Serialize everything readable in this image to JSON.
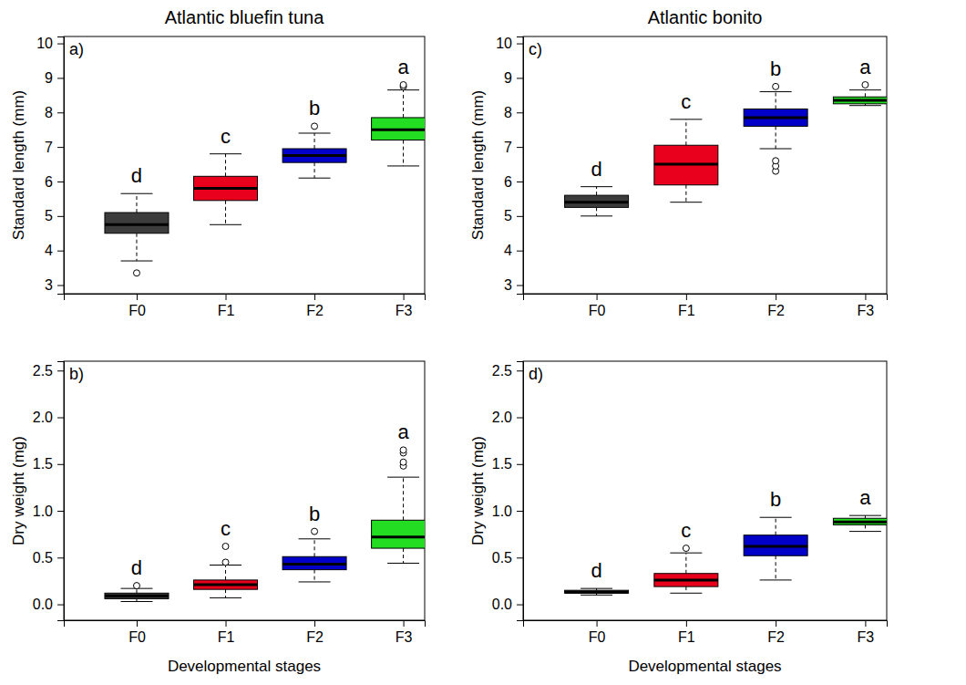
{
  "chart_data": [
    {
      "type": "box",
      "title": "Atlantic bluefin tuna",
      "panel_label": "a)",
      "ylabel": "Standard length (mm)",
      "categories": [
        "F0",
        "F1",
        "F2",
        "F3"
      ],
      "colors": [
        "#3c3c3c",
        "#e8001c",
        "#0000c8",
        "#22dd22"
      ],
      "ylim": [
        2.75,
        10.2
      ],
      "yticks": [
        3,
        4,
        5,
        6,
        7,
        8,
        9,
        10
      ],
      "boxes": [
        {
          "whisker_low": 3.7,
          "q1": 4.5,
          "median": 4.75,
          "q3": 5.1,
          "whisker_high": 5.65,
          "outliers": [
            3.35
          ]
        },
        {
          "whisker_low": 4.75,
          "q1": 5.45,
          "median": 5.8,
          "q3": 6.15,
          "whisker_high": 6.8,
          "outliers": []
        },
        {
          "whisker_low": 6.1,
          "q1": 6.55,
          "median": 6.75,
          "q3": 6.95,
          "whisker_high": 7.4,
          "outliers": [
            7.6
          ]
        },
        {
          "whisker_low": 6.45,
          "q1": 7.2,
          "median": 7.5,
          "q3": 7.85,
          "whisker_high": 8.65,
          "outliers": [
            8.75,
            8.8
          ]
        }
      ],
      "letters": [
        "d",
        "c",
        "b",
        "a"
      ]
    },
    {
      "type": "box",
      "panel_label": "b)",
      "ylabel": "Dry weight (mg)",
      "xlabel": "Developmental stages",
      "categories": [
        "F0",
        "F1",
        "F2",
        "F3"
      ],
      "colors": [
        "#3c3c3c",
        "#e8001c",
        "#0000c8",
        "#22dd22"
      ],
      "ylim": [
        -0.17,
        2.6
      ],
      "yticks": [
        {
          "value": 0,
          "label": "0.0"
        },
        {
          "value": 0.5,
          "label": "0.5"
        },
        {
          "value": 1,
          "label": "1.0"
        },
        {
          "value": 1.5,
          "label": "1.5"
        },
        {
          "value": 2,
          "label": "2.0"
        },
        {
          "value": 2.5,
          "label": "2.5"
        }
      ],
      "boxes": [
        {
          "whisker_low": 0.03,
          "q1": 0.06,
          "median": 0.09,
          "q3": 0.12,
          "whisker_high": 0.17,
          "outliers": [
            0.2
          ]
        },
        {
          "whisker_low": 0.07,
          "q1": 0.16,
          "median": 0.21,
          "q3": 0.26,
          "whisker_high": 0.42,
          "outliers": [
            0.45,
            0.62
          ]
        },
        {
          "whisker_low": 0.24,
          "q1": 0.37,
          "median": 0.43,
          "q3": 0.51,
          "whisker_high": 0.7,
          "outliers": [
            0.78
          ]
        },
        {
          "whisker_low": 0.44,
          "q1": 0.6,
          "median": 0.72,
          "q3": 0.9,
          "whisker_high": 1.36,
          "outliers": [
            1.48,
            1.52,
            1.62,
            1.65
          ]
        }
      ],
      "letters": [
        "d",
        "c",
        "b",
        "a"
      ]
    },
    {
      "type": "box",
      "title": "Atlantic bonito",
      "panel_label": "c)",
      "ylabel": "Standard length (mm)",
      "categories": [
        "F0",
        "F1",
        "F2",
        "F3"
      ],
      "colors": [
        "#3c3c3c",
        "#e8001c",
        "#0000c8",
        "#22dd22"
      ],
      "ylim": [
        2.75,
        10.2
      ],
      "yticks": [
        3,
        4,
        5,
        6,
        7,
        8,
        9,
        10
      ],
      "boxes": [
        {
          "whisker_low": 5.0,
          "q1": 5.25,
          "median": 5.4,
          "q3": 5.6,
          "whisker_high": 5.85,
          "outliers": []
        },
        {
          "whisker_low": 5.4,
          "q1": 5.9,
          "median": 6.5,
          "q3": 7.05,
          "whisker_high": 7.8,
          "outliers": []
        },
        {
          "whisker_low": 6.95,
          "q1": 7.6,
          "median": 7.85,
          "q3": 8.1,
          "whisker_high": 8.6,
          "outliers": [
            6.3,
            6.45,
            6.6,
            8.75
          ]
        },
        {
          "whisker_low": 8.2,
          "q1": 8.25,
          "median": 8.35,
          "q3": 8.45,
          "whisker_high": 8.65,
          "outliers": [
            8.8
          ]
        }
      ],
      "letters": [
        "d",
        "c",
        "b",
        "a"
      ]
    },
    {
      "type": "box",
      "panel_label": "d)",
      "ylabel": "Dry weight (mg)",
      "xlabel": "Developmental stages",
      "categories": [
        "F0",
        "F1",
        "F2",
        "F3"
      ],
      "colors": [
        "#3c3c3c",
        "#e8001c",
        "#0000c8",
        "#22dd22"
      ],
      "ylim": [
        -0.17,
        2.6
      ],
      "yticks": [
        {
          "value": 0,
          "label": "0.0"
        },
        {
          "value": 0.5,
          "label": "0.5"
        },
        {
          "value": 1,
          "label": "1.0"
        },
        {
          "value": 1.5,
          "label": "1.5"
        },
        {
          "value": 2,
          "label": "2.0"
        },
        {
          "value": 2.5,
          "label": "2.5"
        }
      ],
      "boxes": [
        {
          "whisker_low": 0.1,
          "q1": 0.12,
          "median": 0.13,
          "q3": 0.15,
          "whisker_high": 0.17,
          "outliers": []
        },
        {
          "whisker_low": 0.12,
          "q1": 0.19,
          "median": 0.26,
          "q3": 0.33,
          "whisker_high": 0.55,
          "outliers": [
            0.6
          ]
        },
        {
          "whisker_low": 0.26,
          "q1": 0.52,
          "median": 0.62,
          "q3": 0.74,
          "whisker_high": 0.93,
          "outliers": []
        },
        {
          "whisker_low": 0.78,
          "q1": 0.85,
          "median": 0.88,
          "q3": 0.92,
          "whisker_high": 0.95,
          "outliers": []
        }
      ],
      "letters": [
        "d",
        "c",
        "b",
        "a"
      ]
    }
  ]
}
